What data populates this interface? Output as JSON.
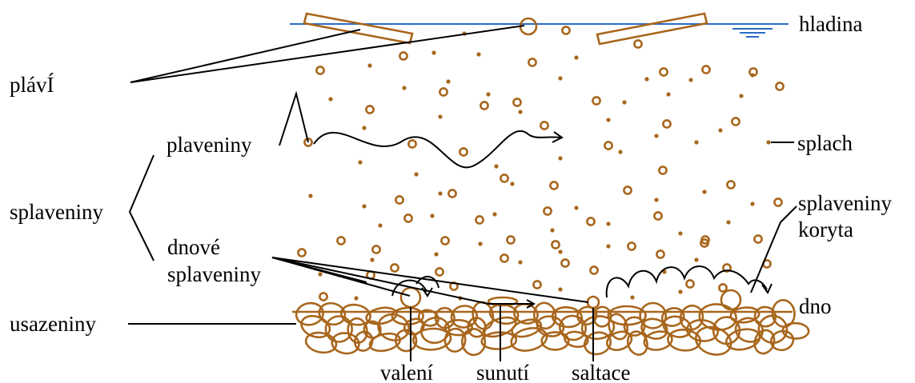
{
  "labels": {
    "hladina": "hladina",
    "plavi": "plávÍ",
    "plaveniny": "plaveniny",
    "splach": "splach",
    "splaveniny": "splaveniny",
    "splaveniny_koryta_1": "splaveniny",
    "splaveniny_koryta_2": "koryta",
    "dnove_1": "dnové",
    "dnove_2": "splaveniny",
    "usazeniny": "usazeniny",
    "dno": "dno",
    "valeni": "valení",
    "sunuti": "sunutí",
    "saltace": "saltace"
  },
  "colors": {
    "water": "#2a6cc4",
    "sediment": "#a8661c",
    "line": "#000000"
  }
}
